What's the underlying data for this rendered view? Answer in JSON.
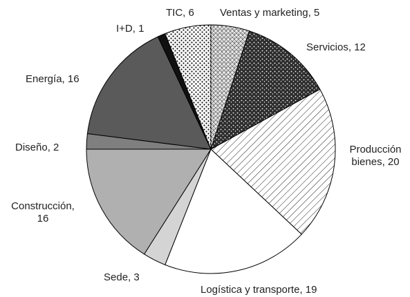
{
  "chart_data": {
    "type": "pie",
    "categories": [
      "Ventas y marketing, 5",
      "Servicios, 12",
      "Producción bienes, 20",
      "Logística y transporte, 19",
      "Sede, 3",
      "Construcción, 16",
      "Diseño, 2",
      "Energía, 16",
      "I+D, 1",
      "TIC, 6"
    ],
    "values": [
      5,
      12,
      20,
      19,
      3,
      16,
      2,
      16,
      1,
      6
    ],
    "colors": [
      "#e8e8e8",
      "#2e2e2e",
      "#ffffff",
      "#ffffff",
      "#d4d4d4",
      "#b0b0b0",
      "#7f7f7f",
      "#5a5a5a",
      "#111111",
      "#ffffff"
    ]
  }
}
